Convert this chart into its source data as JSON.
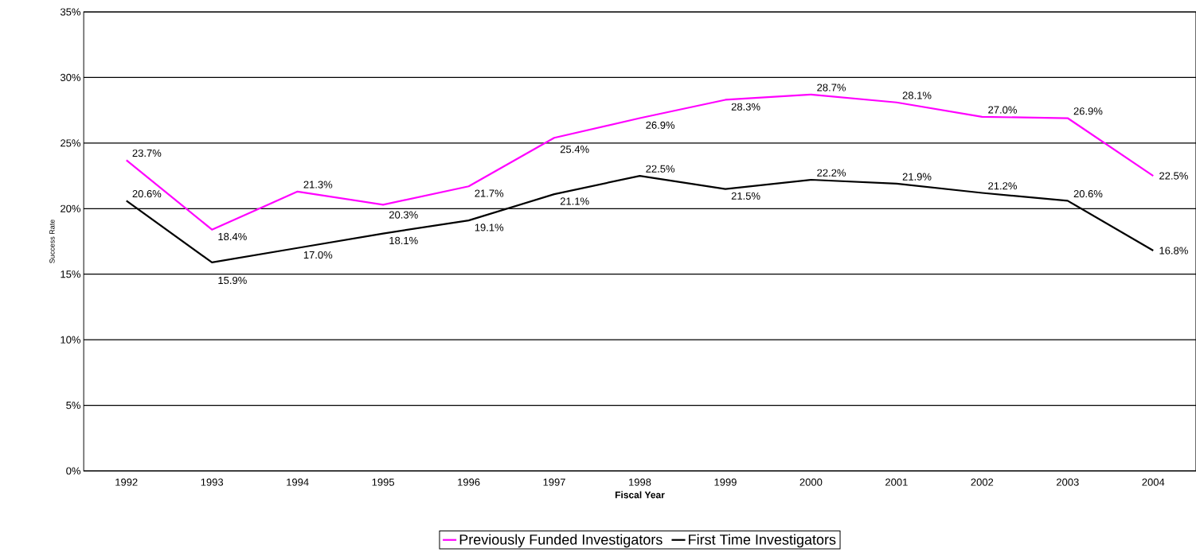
{
  "chart_data": {
    "type": "line",
    "xlabel": "Fiscal Year",
    "ylabel": "Success Rate",
    "categories": [
      "1992",
      "1993",
      "1994",
      "1995",
      "1996",
      "1997",
      "1998",
      "1999",
      "2000",
      "2001",
      "2002",
      "2003",
      "2004"
    ],
    "series": [
      {
        "name": "Previously Funded Investigators",
        "color": "#ff00ff",
        "values": [
          23.7,
          18.4,
          21.3,
          20.3,
          21.7,
          25.4,
          26.9,
          28.3,
          28.7,
          28.1,
          27.0,
          26.9,
          22.5
        ],
        "value_labels": [
          "23.7%",
          "18.4%",
          "21.3%",
          "20.3%",
          "21.7%",
          "25.4%",
          "26.9%",
          "28.3%",
          "28.7%",
          "28.1%",
          "27.0%",
          "26.9%",
          "22.5%"
        ]
      },
      {
        "name": "First Time Investigators",
        "color": "#000000",
        "values": [
          20.6,
          15.9,
          17.0,
          18.1,
          19.1,
          21.1,
          22.5,
          21.5,
          22.2,
          21.9,
          21.2,
          20.6,
          16.8
        ],
        "value_labels": [
          "20.6%",
          "15.9%",
          "17.0%",
          "18.1%",
          "19.1%",
          "21.1%",
          "22.5%",
          "21.5%",
          "22.2%",
          "21.9%",
          "21.2%",
          "20.6%",
          "16.8%"
        ]
      }
    ],
    "ylim": [
      0,
      35
    ],
    "yticks": [
      {
        "value": 0,
        "label": "0%"
      },
      {
        "value": 5,
        "label": "5%"
      },
      {
        "value": 10,
        "label": "10%"
      },
      {
        "value": 15,
        "label": "15%"
      },
      {
        "value": 20,
        "label": "20%"
      },
      {
        "value": 25,
        "label": "25%"
      },
      {
        "value": 30,
        "label": "30%"
      },
      {
        "value": 35,
        "label": "35%"
      }
    ],
    "grid": "y",
    "legend": "bottom",
    "marker": "none",
    "line_style": "solid"
  }
}
